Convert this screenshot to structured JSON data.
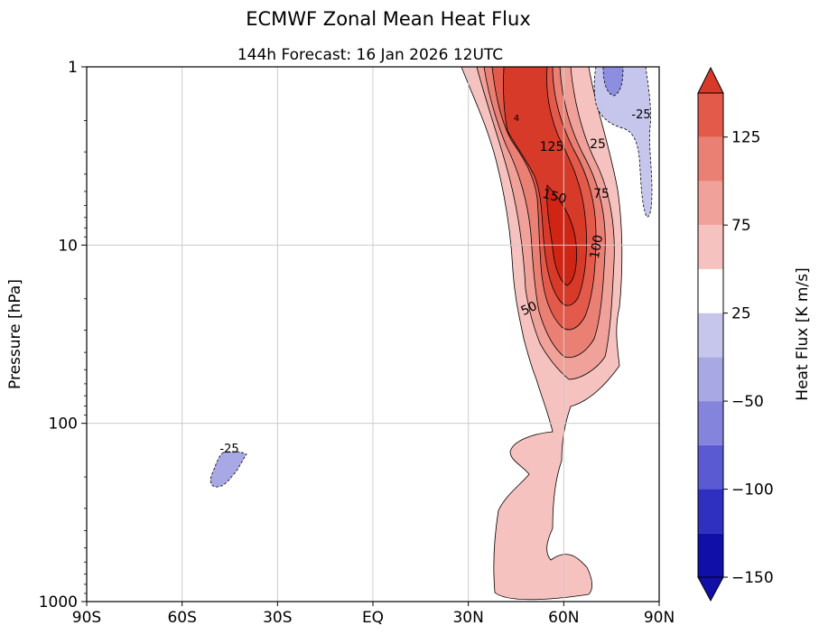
{
  "chart_data": {
    "type": "heatmap",
    "title": "ECMWF Zonal Mean Heat Flux",
    "subtitle": "144h  Forecast:  16 Jan 2026  12UTC",
    "xlabel": "",
    "ylabel": "Pressure [hPa]",
    "colorbar_label": "Heat Flux [K  m/s]",
    "x_ticks": [
      "90S",
      "60S",
      "30S",
      "EQ",
      "30N",
      "60N",
      "90N"
    ],
    "x_values": [
      -90,
      -60,
      -30,
      0,
      30,
      60,
      90
    ],
    "xlim": [
      -90,
      90
    ],
    "y_scale": "log",
    "ylim": [
      1000,
      1
    ],
    "y_ticks": [
      1,
      10,
      100,
      1000
    ],
    "y_tick_labels": [
      "1",
      "10",
      "100",
      "1000"
    ],
    "grid": true,
    "colorbar_ticks": [
      "125",
      "75",
      "25",
      "−50",
      "−100",
      "−150"
    ],
    "colorbar_levels": [
      -150,
      -125,
      -100,
      -75,
      -50,
      -25,
      25,
      50,
      75,
      100,
      125,
      150
    ],
    "colorbar_colors": [
      "#1010a8",
      "#3030c0",
      "#5a5ad2",
      "#8484dc",
      "#a8a8e4",
      "#c6c6ec",
      "#ffffff",
      "#f6c2bf",
      "#f0a29a",
      "#ea7f73",
      "#e35a4b",
      "#d83a2a"
    ],
    "contour_labels": [
      "4",
      "125",
      "25",
      "-25",
      "150",
      "75",
      "100",
      "50",
      "-25"
    ],
    "colors": {
      "strong_positive": "#d83a2a",
      "weak_positive": "#f6c2bf",
      "negative": "#a8a8e4"
    }
  }
}
